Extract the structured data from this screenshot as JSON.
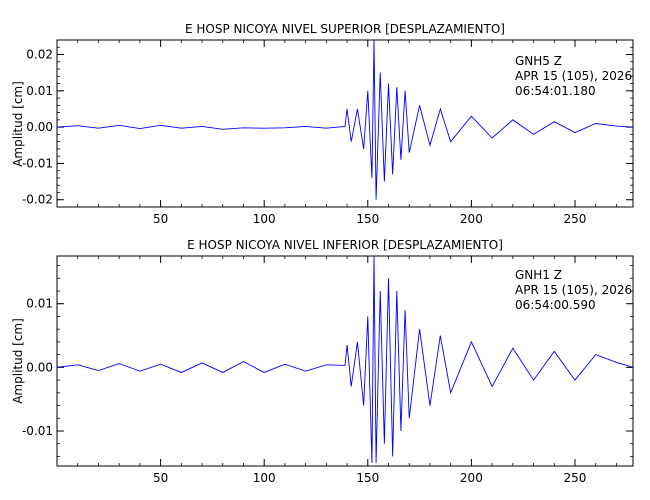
{
  "chart_data": [
    {
      "type": "line",
      "title": "E HOSP NICOYA NIVEL SUPERIOR [DESPLAZAMIENTO]",
      "xlabel": "",
      "ylabel": "Amplitud [cm]",
      "xlim": [
        0,
        278
      ],
      "ylim": [
        -0.022,
        0.024
      ],
      "x_ticks": [
        50,
        100,
        150,
        200,
        250
      ],
      "y_ticks": [
        0.02,
        0.01,
        0.0,
        -0.01,
        -0.02
      ],
      "y_tick_labels": [
        "0.02",
        "0.01",
        "0.00",
        "-0.01",
        "-0.02"
      ],
      "annotation": [
        "GNH5   Z",
        "APR 15 (105), 2026",
        "06:54:01.180"
      ],
      "line_color": "#0000ff",
      "grid": false,
      "series": [
        {
          "x": [
            0,
            10,
            20,
            30,
            40,
            50,
            60,
            70,
            80,
            90,
            100,
            110,
            120,
            130,
            139,
            140,
            142,
            145,
            148,
            150,
            152,
            153,
            154,
            156,
            158,
            160,
            162,
            164,
            166,
            168,
            170,
            175,
            180,
            185,
            190,
            200,
            210,
            220,
            230,
            240,
            250,
            260,
            270,
            278
          ],
          "y": [
            0,
            0.0004,
            -0.0003,
            0.0005,
            -0.0004,
            0.0005,
            -0.0003,
            0.0002,
            -0.0006,
            -0.0002,
            -0.0003,
            -0.0002,
            0.0002,
            -0.0003,
            0.0002,
            0.005,
            -0.004,
            0.005,
            -0.006,
            0.01,
            -0.014,
            0.024,
            -0.02,
            0.015,
            -0.015,
            0.012,
            -0.013,
            0.011,
            -0.009,
            0.01,
            -0.007,
            0.006,
            -0.005,
            0.005,
            -0.004,
            0.003,
            -0.003,
            0.002,
            -0.002,
            0.0015,
            -0.0015,
            0.001,
            0.0003,
            0
          ]
        }
      ]
    },
    {
      "type": "line",
      "title": "E HOSP NICOYA NIVEL INFERIOR [DESPLAZAMIENTO]",
      "xlabel": "",
      "ylabel": "Amplitud [cm]",
      "xlim": [
        0,
        278
      ],
      "ylim": [
        -0.0155,
        0.0175
      ],
      "x_ticks": [
        50,
        100,
        150,
        200,
        250
      ],
      "y_ticks": [
        0.01,
        0.0,
        -0.01
      ],
      "y_tick_labels": [
        "0.01",
        "0.00",
        "-0.01"
      ],
      "annotation": [
        "GNH1   Z",
        "APR 15 (105), 2026",
        "06:54:00.590"
      ],
      "line_color": "#0000ff",
      "grid": false,
      "series": [
        {
          "x": [
            0,
            10,
            20,
            30,
            40,
            50,
            60,
            70,
            80,
            90,
            100,
            110,
            120,
            130,
            139,
            140,
            142,
            145,
            148,
            150,
            152,
            153,
            154,
            156,
            158,
            160,
            162,
            164,
            166,
            168,
            170,
            175,
            180,
            185,
            190,
            200,
            210,
            220,
            230,
            240,
            250,
            260,
            270,
            278
          ],
          "y": [
            0,
            0.0004,
            -0.0005,
            0.0006,
            -0.0006,
            0.0005,
            -0.0008,
            0.0007,
            -0.0008,
            0.0009,
            -0.0008,
            0.0005,
            -0.0006,
            0.0004,
            0.0003,
            0.0035,
            -0.003,
            0.004,
            -0.006,
            0.008,
            -0.015,
            0.0175,
            -0.015,
            0.012,
            -0.012,
            0.014,
            -0.014,
            0.012,
            -0.01,
            0.009,
            -0.008,
            0.006,
            -0.006,
            0.005,
            -0.004,
            0.004,
            -0.003,
            0.003,
            -0.002,
            0.0025,
            -0.002,
            0.002,
            0.0008,
            0
          ]
        }
      ]
    }
  ]
}
